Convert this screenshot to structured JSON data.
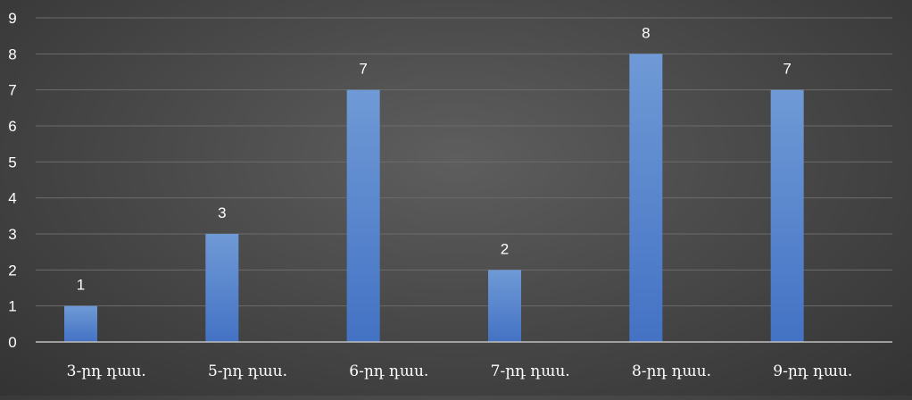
{
  "chart_data": {
    "type": "bar",
    "categories": [
      "3-րդ դաս.",
      "5-րդ դաս.",
      "6-րդ դաս.",
      "7-րդ դաս.",
      "8-րդ դաս.",
      "9-րդ դաս."
    ],
    "values": [
      1,
      3,
      7,
      2,
      8,
      7
    ],
    "ylim": [
      0,
      9
    ],
    "yticks": [
      0,
      1,
      2,
      3,
      4,
      5,
      6,
      7,
      8,
      9
    ],
    "title": "",
    "xlabel": "",
    "ylabel": "",
    "grid": true,
    "legend": "none",
    "data_labels": true,
    "colors": {
      "bar_top": "#6f9ad6",
      "bar_bottom": "#4472c4",
      "gridline": "#6b6b6b",
      "axis": "#bfbfbf",
      "text": "#ffffff"
    }
  }
}
